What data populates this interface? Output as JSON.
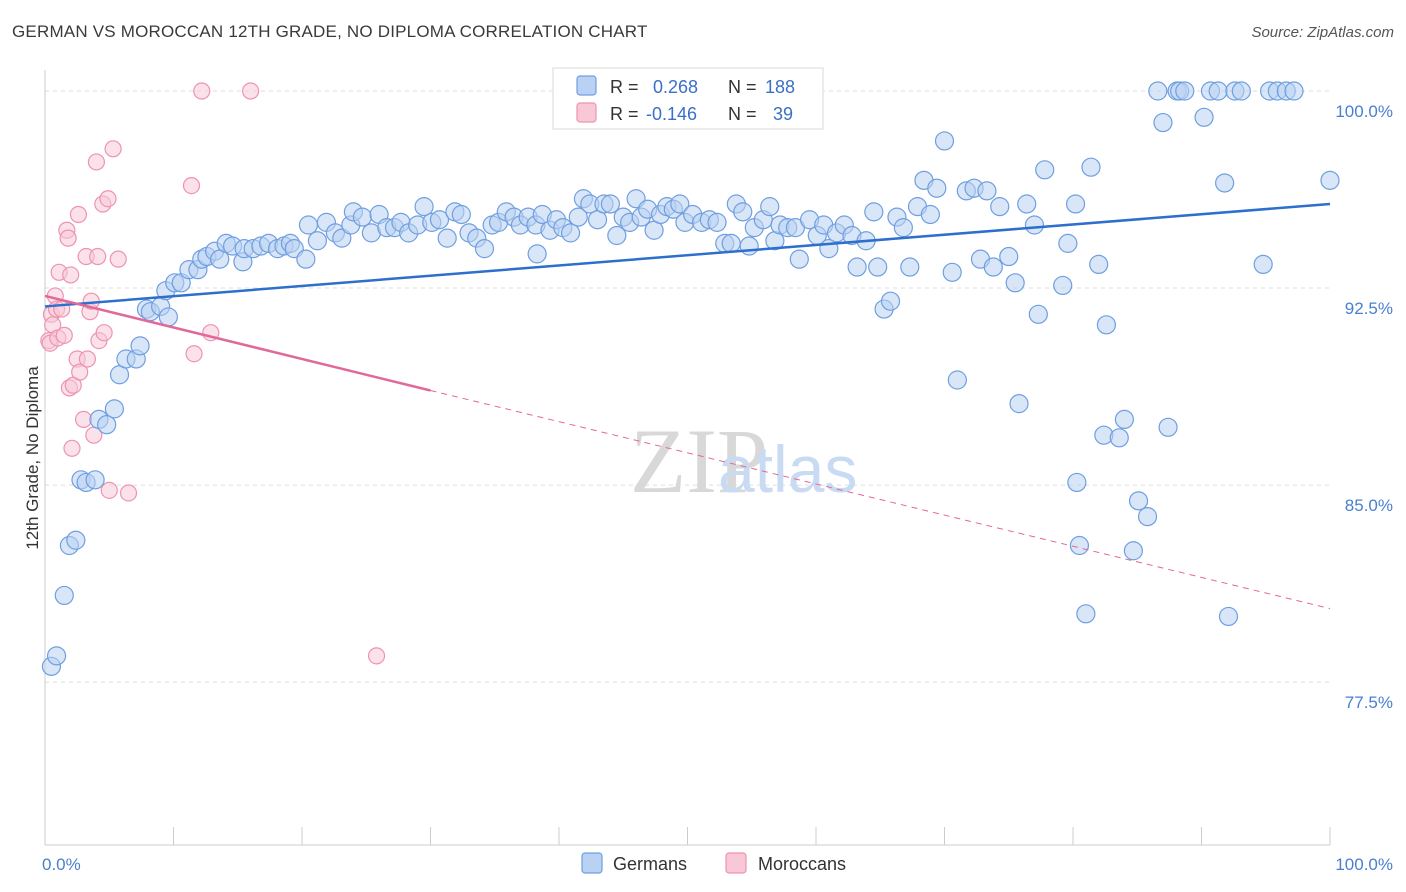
{
  "header": {
    "title": "GERMAN VS MOROCCAN 12TH GRADE, NO DIPLOMA CORRELATION CHART",
    "source": "Source: ZipAtlas.com"
  },
  "watermark": {
    "zip": "ZIP",
    "atlas": "atlas"
  },
  "legend_box": {
    "rows": [
      {
        "r_label": "R =",
        "r_value": "0.268",
        "n_label": "N =",
        "n_value": "188"
      },
      {
        "r_label": "R =",
        "r_value": "-0.146",
        "n_label": "N =",
        "n_value": "39"
      }
    ]
  },
  "colors": {
    "german": "#6f9fe0",
    "german_fill": "#b9d1f3",
    "german_line": "#2d6fcc",
    "moroccan": "#ee93b0",
    "moroccan_fill": "#f8c8d7",
    "moroccan_line": "#e0699a",
    "value_text": "#3a6fc9",
    "axis_text": "#4a7fd0",
    "grid": "#dddddd"
  },
  "chart_data": {
    "type": "scatter",
    "xlabel": "",
    "ylabel": "12th Grade, No Diploma",
    "xlim": [
      0,
      100
    ],
    "ylim": [
      71.3,
      100.8
    ],
    "x_tick_labels": [
      {
        "value": 0,
        "label": "0.0%"
      },
      {
        "value": 100,
        "label": "100.0%"
      }
    ],
    "y_tick_labels": [
      {
        "value": 100,
        "label": "100.0%"
      },
      {
        "value": 92.5,
        "label": "92.5%"
      },
      {
        "value": 85,
        "label": "85.0%"
      },
      {
        "value": 77.5,
        "label": "77.5%"
      }
    ],
    "grid": true,
    "legend": "bottom-center",
    "series": [
      {
        "name": "Germans",
        "color": "#6f9fe0",
        "trend": {
          "x": [
            0,
            100
          ],
          "y": [
            91.8,
            95.7
          ]
        },
        "points": [
          [
            0.5,
            78.1
          ],
          [
            0.9,
            78.5
          ],
          [
            1.5,
            80.8
          ],
          [
            1.9,
            82.7
          ],
          [
            2.4,
            82.9
          ],
          [
            2.8,
            85.2
          ],
          [
            3.2,
            85.1
          ],
          [
            3.9,
            85.2
          ],
          [
            4.2,
            87.5
          ],
          [
            4.8,
            87.3
          ],
          [
            5.4,
            87.9
          ],
          [
            5.8,
            89.2
          ],
          [
            6.3,
            89.8
          ],
          [
            7.1,
            89.8
          ],
          [
            7.4,
            90.3
          ],
          [
            7.9,
            91.7
          ],
          [
            8.2,
            91.6
          ],
          [
            9.0,
            91.8
          ],
          [
            9.6,
            91.4
          ],
          [
            9.4,
            92.4
          ],
          [
            10.1,
            92.7
          ],
          [
            10.6,
            92.7
          ],
          [
            11.2,
            93.2
          ],
          [
            11.9,
            93.2
          ],
          [
            12.2,
            93.6
          ],
          [
            12.6,
            93.7
          ],
          [
            13.2,
            93.9
          ],
          [
            13.6,
            93.6
          ],
          [
            14.1,
            94.2
          ],
          [
            14.6,
            94.1
          ],
          [
            15.4,
            93.5
          ],
          [
            15.5,
            94.0
          ],
          [
            16.2,
            94.0
          ],
          [
            16.8,
            94.1
          ],
          [
            17.4,
            94.2
          ],
          [
            18.1,
            94.0
          ],
          [
            18.6,
            94.1
          ],
          [
            19.1,
            94.2
          ],
          [
            19.4,
            94.0
          ],
          [
            20.3,
            93.6
          ],
          [
            20.5,
            94.9
          ],
          [
            21.2,
            94.3
          ],
          [
            21.9,
            95.0
          ],
          [
            22.6,
            94.6
          ],
          [
            23.1,
            94.4
          ],
          [
            23.8,
            94.9
          ],
          [
            24.0,
            95.4
          ],
          [
            24.7,
            95.2
          ],
          [
            25.4,
            94.6
          ],
          [
            26.0,
            95.3
          ],
          [
            26.6,
            94.8
          ],
          [
            27.2,
            94.8
          ],
          [
            27.7,
            95.0
          ],
          [
            28.3,
            94.6
          ],
          [
            29.0,
            94.9
          ],
          [
            29.5,
            95.6
          ],
          [
            30.1,
            95.0
          ],
          [
            30.7,
            95.1
          ],
          [
            31.3,
            94.4
          ],
          [
            31.9,
            95.4
          ],
          [
            32.4,
            95.3
          ],
          [
            33.0,
            94.6
          ],
          [
            33.6,
            94.4
          ],
          [
            34.2,
            94.0
          ],
          [
            34.8,
            94.9
          ],
          [
            35.3,
            95.0
          ],
          [
            35.9,
            95.4
          ],
          [
            36.5,
            95.2
          ],
          [
            37.0,
            94.9
          ],
          [
            37.6,
            95.2
          ],
          [
            38.2,
            94.9
          ],
          [
            38.7,
            95.3
          ],
          [
            38.3,
            93.8
          ],
          [
            39.3,
            94.7
          ],
          [
            39.8,
            95.1
          ],
          [
            40.3,
            94.8
          ],
          [
            40.9,
            94.6
          ],
          [
            41.5,
            95.2
          ],
          [
            41.9,
            95.9
          ],
          [
            42.4,
            95.7
          ],
          [
            43.0,
            95.1
          ],
          [
            43.5,
            95.7
          ],
          [
            44.0,
            95.7
          ],
          [
            44.5,
            94.5
          ],
          [
            45.0,
            95.2
          ],
          [
            45.5,
            95.0
          ],
          [
            46.0,
            95.9
          ],
          [
            46.4,
            95.2
          ],
          [
            46.9,
            95.5
          ],
          [
            47.4,
            94.7
          ],
          [
            47.9,
            95.3
          ],
          [
            48.4,
            95.6
          ],
          [
            48.9,
            95.5
          ],
          [
            49.4,
            95.7
          ],
          [
            49.8,
            95.0
          ],
          [
            50.4,
            95.3
          ],
          [
            51.1,
            95.0
          ],
          [
            51.7,
            95.1
          ],
          [
            52.3,
            95.0
          ],
          [
            52.9,
            94.2
          ],
          [
            53.4,
            94.2
          ],
          [
            53.8,
            95.7
          ],
          [
            54.3,
            95.4
          ],
          [
            54.8,
            94.1
          ],
          [
            55.2,
            94.8
          ],
          [
            55.9,
            95.1
          ],
          [
            56.4,
            95.6
          ],
          [
            56.8,
            94.3
          ],
          [
            57.2,
            94.9
          ],
          [
            57.8,
            94.8
          ],
          [
            58.4,
            94.8
          ],
          [
            58.7,
            93.6
          ],
          [
            59.5,
            95.1
          ],
          [
            60.1,
            94.5
          ],
          [
            60.6,
            94.9
          ],
          [
            61.0,
            94.0
          ],
          [
            61.6,
            94.6
          ],
          [
            62.2,
            94.9
          ],
          [
            62.8,
            94.5
          ],
          [
            63.2,
            93.3
          ],
          [
            63.9,
            94.3
          ],
          [
            64.5,
            95.4
          ],
          [
            64.8,
            93.3
          ],
          [
            65.3,
            91.7
          ],
          [
            65.8,
            92.0
          ],
          [
            66.3,
            95.2
          ],
          [
            66.8,
            94.8
          ],
          [
            67.3,
            93.3
          ],
          [
            67.9,
            95.6
          ],
          [
            68.4,
            96.6
          ],
          [
            68.9,
            95.3
          ],
          [
            69.4,
            96.3
          ],
          [
            70.0,
            98.1
          ],
          [
            70.6,
            93.1
          ],
          [
            71.0,
            89.0
          ],
          [
            71.7,
            96.2
          ],
          [
            72.3,
            96.3
          ],
          [
            72.8,
            93.6
          ],
          [
            73.3,
            96.2
          ],
          [
            73.8,
            93.3
          ],
          [
            74.3,
            95.6
          ],
          [
            75.0,
            93.7
          ],
          [
            75.5,
            92.7
          ],
          [
            75.8,
            88.1
          ],
          [
            76.4,
            95.7
          ],
          [
            77.0,
            94.9
          ],
          [
            77.3,
            91.5
          ],
          [
            77.8,
            97.0
          ],
          [
            79.2,
            92.6
          ],
          [
            79.6,
            94.2
          ],
          [
            80.2,
            95.7
          ],
          [
            80.3,
            85.1
          ],
          [
            80.5,
            82.7
          ],
          [
            81.4,
            97.1
          ],
          [
            82.0,
            93.4
          ],
          [
            82.6,
            91.1
          ],
          [
            82.4,
            86.9
          ],
          [
            83.6,
            86.8
          ],
          [
            84.0,
            87.5
          ],
          [
            84.7,
            82.5
          ],
          [
            85.1,
            84.4
          ],
          [
            85.8,
            83.8
          ],
          [
            86.6,
            100.0
          ],
          [
            87.0,
            98.8
          ],
          [
            87.4,
            87.2
          ],
          [
            88.1,
            100.0
          ],
          [
            88.3,
            100.0
          ],
          [
            88.7,
            100.0
          ],
          [
            90.2,
            99.0
          ],
          [
            90.7,
            100.0
          ],
          [
            91.3,
            100.0
          ],
          [
            91.8,
            96.5
          ],
          [
            92.1,
            80.0
          ],
          [
            92.6,
            100.0
          ],
          [
            93.1,
            100.0
          ],
          [
            94.8,
            93.4
          ],
          [
            95.3,
            100.0
          ],
          [
            95.9,
            100.0
          ],
          [
            96.6,
            100.0
          ],
          [
            97.2,
            100.0
          ],
          [
            81.0,
            80.1
          ],
          [
            100.0,
            96.6
          ]
        ]
      },
      {
        "name": "Moroccans",
        "color": "#ee93b0",
        "trend": {
          "x": [
            0,
            30
          ],
          "y": [
            92.2,
            88.6
          ],
          "x_dashed_end": 100,
          "y_dashed_end": 80.3
        },
        "points": [
          [
            0.3,
            90.5
          ],
          [
            0.4,
            90.4
          ],
          [
            0.5,
            91.5
          ],
          [
            0.6,
            91.1
          ],
          [
            0.8,
            92.2
          ],
          [
            0.9,
            91.7
          ],
          [
            1.0,
            90.6
          ],
          [
            1.1,
            93.1
          ],
          [
            1.3,
            91.7
          ],
          [
            1.5,
            90.7
          ],
          [
            1.7,
            94.7
          ],
          [
            1.8,
            94.4
          ],
          [
            1.9,
            88.7
          ],
          [
            2.0,
            93.0
          ],
          [
            2.1,
            86.4
          ],
          [
            2.2,
            88.8
          ],
          [
            2.5,
            89.8
          ],
          [
            2.6,
            95.3
          ],
          [
            2.7,
            89.3
          ],
          [
            3.0,
            87.5
          ],
          [
            3.2,
            93.7
          ],
          [
            3.3,
            89.8
          ],
          [
            3.5,
            91.6
          ],
          [
            3.6,
            92.0
          ],
          [
            3.8,
            86.9
          ],
          [
            4.0,
            97.3
          ],
          [
            4.1,
            93.7
          ],
          [
            4.2,
            90.5
          ],
          [
            4.5,
            95.7
          ],
          [
            4.6,
            90.8
          ],
          [
            4.9,
            95.9
          ],
          [
            5.0,
            84.8
          ],
          [
            5.3,
            97.8
          ],
          [
            5.7,
            93.6
          ],
          [
            6.5,
            84.7
          ],
          [
            11.4,
            96.4
          ],
          [
            11.6,
            90.0
          ],
          [
            12.2,
            100.0
          ],
          [
            12.9,
            90.8
          ],
          [
            16.0,
            100.0
          ],
          [
            25.8,
            78.5
          ]
        ]
      }
    ]
  }
}
